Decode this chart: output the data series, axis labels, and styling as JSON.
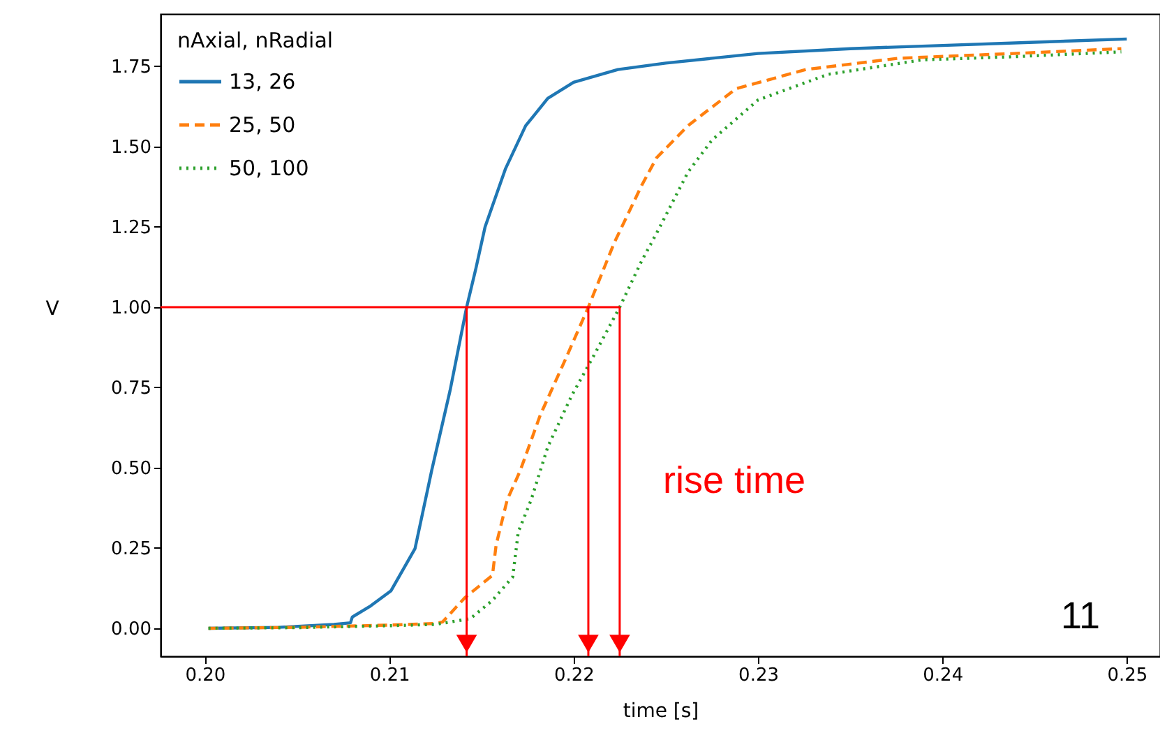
{
  "chart_data": {
    "type": "line",
    "xlabel": "time [s]",
    "ylabel": "V",
    "legend_title": "nAxial, nRadial",
    "legend": "top left",
    "grid": false,
    "xlim": [
      0.1976,
      0.2518
    ],
    "ylim": [
      -0.087,
      1.913
    ],
    "xticks": [
      {
        "value": 0.2,
        "label": "0.20"
      },
      0.21,
      0.22,
      0.23,
      0.24,
      0.25
    ],
    "yticks": [
      {
        "value": 0,
        "label": "0.00"
      },
      0.25,
      {
        "value": 0.5,
        "label": "0.50"
      },
      0.75,
      {
        "value": 1,
        "label": "1.00"
      },
      1.25,
      {
        "value": 1.5,
        "label": "1.50"
      },
      1.75
    ],
    "series": [
      {
        "name": "13, 26",
        "color": "#1f77b4",
        "line_style": "solid",
        "x": [
          0.2002,
          0.204,
          0.207,
          0.2079,
          0.208,
          0.209,
          0.2101,
          0.2114,
          0.2123,
          0.2133,
          0.2142,
          0.2147,
          0.2152,
          0.2163,
          0.2174,
          0.2186,
          0.22,
          0.2224,
          0.225,
          0.23,
          0.235,
          0.24,
          0.245,
          0.25
        ],
        "values": [
          0,
          0.003,
          0.012,
          0.017,
          0.035,
          0.07,
          0.117,
          0.248,
          0.49,
          0.74,
          1.0,
          1.12,
          1.25,
          1.43,
          1.565,
          1.65,
          1.7,
          1.74,
          1.76,
          1.79,
          1.805,
          1.815,
          1.825,
          1.835
        ]
      },
      {
        "name": "25, 50",
        "color": "#ff7f0e",
        "line_style": "dashed",
        "x": [
          0.2002,
          0.205,
          0.21,
          0.2125,
          0.2129,
          0.2141,
          0.2156,
          0.2158,
          0.2164,
          0.2171,
          0.2182,
          0.2195,
          0.2208,
          0.2222,
          0.2237,
          0.2245,
          0.2262,
          0.2288,
          0.2326,
          0.2376,
          0.2439,
          0.2497
        ],
        "values": [
          0,
          0.003,
          0.01,
          0.015,
          0.02,
          0.095,
          0.165,
          0.26,
          0.4,
          0.49,
          0.665,
          0.83,
          1.0,
          1.2,
          1.38,
          1.465,
          1.565,
          1.68,
          1.74,
          1.775,
          1.79,
          1.805
        ]
      },
      {
        "name": "50, 100",
        "color": "#2ca02c",
        "line_style": "dotted",
        "x": [
          0.2002,
          0.205,
          0.21,
          0.2125,
          0.2144,
          0.2156,
          0.2167,
          0.217,
          0.2177,
          0.2186,
          0.2199,
          0.2212,
          0.2225,
          0.2237,
          0.2245,
          0.2262,
          0.2275,
          0.23,
          0.2338,
          0.2389,
          0.2439,
          0.2497
        ],
        "values": [
          0,
          0.002,
          0.008,
          0.012,
          0.03,
          0.087,
          0.16,
          0.3,
          0.4,
          0.565,
          0.725,
          0.86,
          1.0,
          1.145,
          1.23,
          1.42,
          1.52,
          1.645,
          1.725,
          1.77,
          1.78,
          1.795
        ]
      }
    ],
    "ref_lines": [
      {
        "axis": "y",
        "value": 1,
        "color": "#ff0000"
      },
      {
        "axis": "x",
        "value": 0.2142,
        "color": "#ff0000"
      },
      {
        "axis": "x",
        "value": 0.2208,
        "color": "#ff0000"
      },
      {
        "axis": "x",
        "value": 0.2225,
        "color": "#ff0000"
      }
    ],
    "annotations": [
      "rise time",
      "11"
    ]
  }
}
